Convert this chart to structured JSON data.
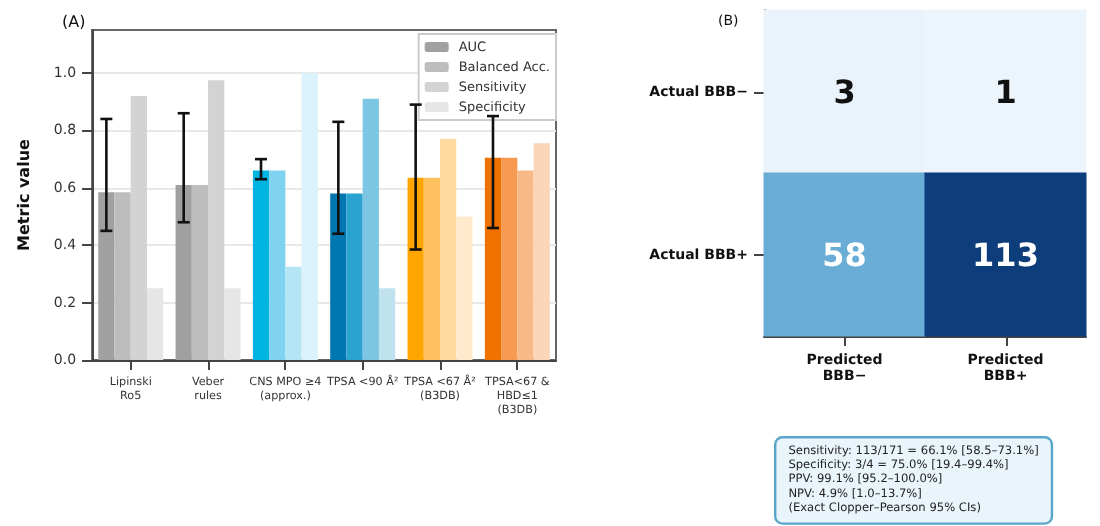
{
  "chart_data": [
    {
      "type": "bar",
      "title": "(A)",
      "ylabel": "Metric value",
      "categories": [
        "Lipinski\nRo5",
        "Veber\nrules",
        "CNS MPO ≥4\n(approx.)",
        "TPSA <90 Å²",
        "TPSA <67 Å²\n(B3DB)",
        "TPSA<67 &\nHBD≤1\n(B3DB)"
      ],
      "series": [
        {
          "name": "AUC",
          "color": "#a0a0a0",
          "colors": [
            "#a0a0a0",
            "#a0a0a0",
            "#00b4e0",
            "#0077b0",
            "#ffa500",
            "#f07000"
          ],
          "values": [
            0.585,
            0.61,
            0.66,
            0.58,
            0.635,
            0.705
          ],
          "errors": [
            [
              0.45,
              0.84
            ],
            [
              0.48,
              0.86
            ],
            [
              0.63,
              0.7
            ],
            [
              0.44,
              0.83
            ],
            [
              0.385,
              0.89
            ],
            [
              0.46,
              0.85
            ]
          ]
        },
        {
          "name": "Balanced Acc.",
          "color": "#bdbdbd",
          "colors": [
            "#bdbdbd",
            "#bdbdbd",
            "#7fd3f0",
            "#2ba3d0",
            "#ffc060",
            "#f59a50"
          ],
          "values": [
            0.585,
            0.61,
            0.66,
            0.58,
            0.635,
            0.705
          ]
        },
        {
          "name": "Sensitivity",
          "color": "#d3d3d3",
          "colors": [
            "#d3d3d3",
            "#d3d3d3",
            "#b3e5f5",
            "#7cc5e3",
            "#ffd9a0",
            "#f8b888"
          ],
          "values": [
            0.92,
            0.975,
            0.325,
            0.91,
            0.77,
            0.66
          ]
        },
        {
          "name": "Specificity",
          "color": "#e6e6e6",
          "colors": [
            "#e6e6e6",
            "#e6e6e6",
            "#d9f2fb",
            "#c0e2ef",
            "#ffe9cc",
            "#fbd5b8"
          ],
          "values": [
            0.25,
            0.25,
            1.0,
            0.25,
            0.5,
            0.755
          ]
        }
      ],
      "ylim": [
        0,
        1.15
      ],
      "yticks": [
        {
          "value": 0,
          "label": "0.0"
        },
        0.2,
        0.4,
        0.6,
        0.8,
        {
          "value": 1,
          "label": "1.0"
        }
      ],
      "grid": "y",
      "legend": "top right"
    },
    {
      "type": "heatmap",
      "title": "(B)",
      "categories": [
        "Predicted\nBBB−",
        "Predicted\nBBB+"
      ],
      "y_categories": [
        "Actual BBB−",
        "Actual BBB+"
      ],
      "cells": [
        [
          3,
          1
        ],
        [
          58,
          113
        ]
      ],
      "data_labels": true,
      "annotations": [
        "Sensitivity: 113/171 = 66.1% [58.5–73.1%]",
        "Specificity: 3/4 = 75.0% [19.4–99.4%]",
        "PPV: 99.1% [95.2–100.0%]",
        "NPV: 4.9% [1.0–13.7%]",
        "(Exact Clopper–Pearson 95% CIs)"
      ]
    }
  ]
}
